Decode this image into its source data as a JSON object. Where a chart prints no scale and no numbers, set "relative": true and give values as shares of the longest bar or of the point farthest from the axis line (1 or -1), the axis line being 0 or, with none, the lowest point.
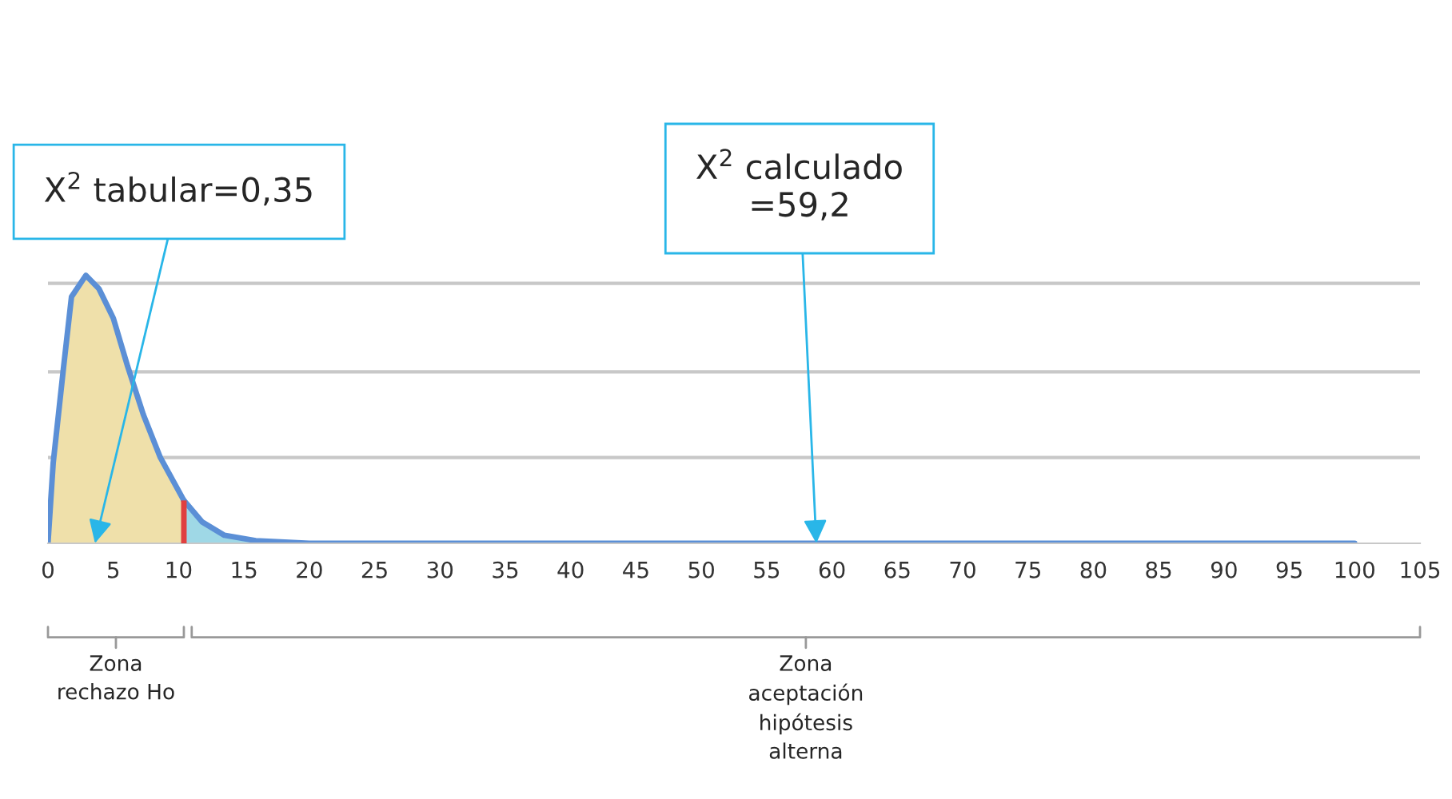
{
  "chart_data": {
    "type": "area",
    "relative": true,
    "series": [
      {
        "color": "#efe0aa",
        "x": [
          0,
          0.4,
          1.2,
          1.8,
          2.9,
          3.9,
          5,
          6.1,
          7.3,
          8.6,
          10.4
        ],
        "values": [
          0,
          0.3,
          0.66,
          0.92,
          1,
          0.95,
          0.84,
          0.66,
          0.48,
          0.32,
          0.16
        ]
      },
      {
        "color": "#9fd8e6",
        "x": [
          10.4,
          11.8,
          13.5,
          15.9,
          20,
          30,
          100
        ],
        "values": [
          0.16,
          0.08,
          0.03,
          0.01,
          0,
          0,
          0
        ]
      }
    ],
    "xlim": [
      0,
      105
    ],
    "xticks": [
      0,
      5,
      10,
      15,
      20,
      25,
      30,
      35,
      40,
      45,
      50,
      55,
      60,
      65,
      70,
      75,
      80,
      85,
      90,
      95,
      100,
      105
    ],
    "ref_lines": [
      {
        "axis": "x",
        "value": 10.4,
        "color": "#e04040"
      },
      {
        "axis": "y",
        "value": 0.32,
        "color": "#c8c8c8"
      },
      {
        "axis": "y",
        "value": 0.64,
        "color": "#c8c8c8"
      },
      {
        "axis": "y",
        "value": 0.97,
        "color": "#c8c8c8"
      }
    ],
    "annotations": [
      {
        "text": "X$^{2}$ tabular=0,35",
        "x": 3.6,
        "y": 0
      },
      {
        "text": "X$^{2}$ calculado\n=59,2",
        "x": 58.8,
        "y": 0
      },
      "Zona\nrechazo Ho",
      "Zona\naceptación\nhipótesis\nalterna"
    ]
  }
}
